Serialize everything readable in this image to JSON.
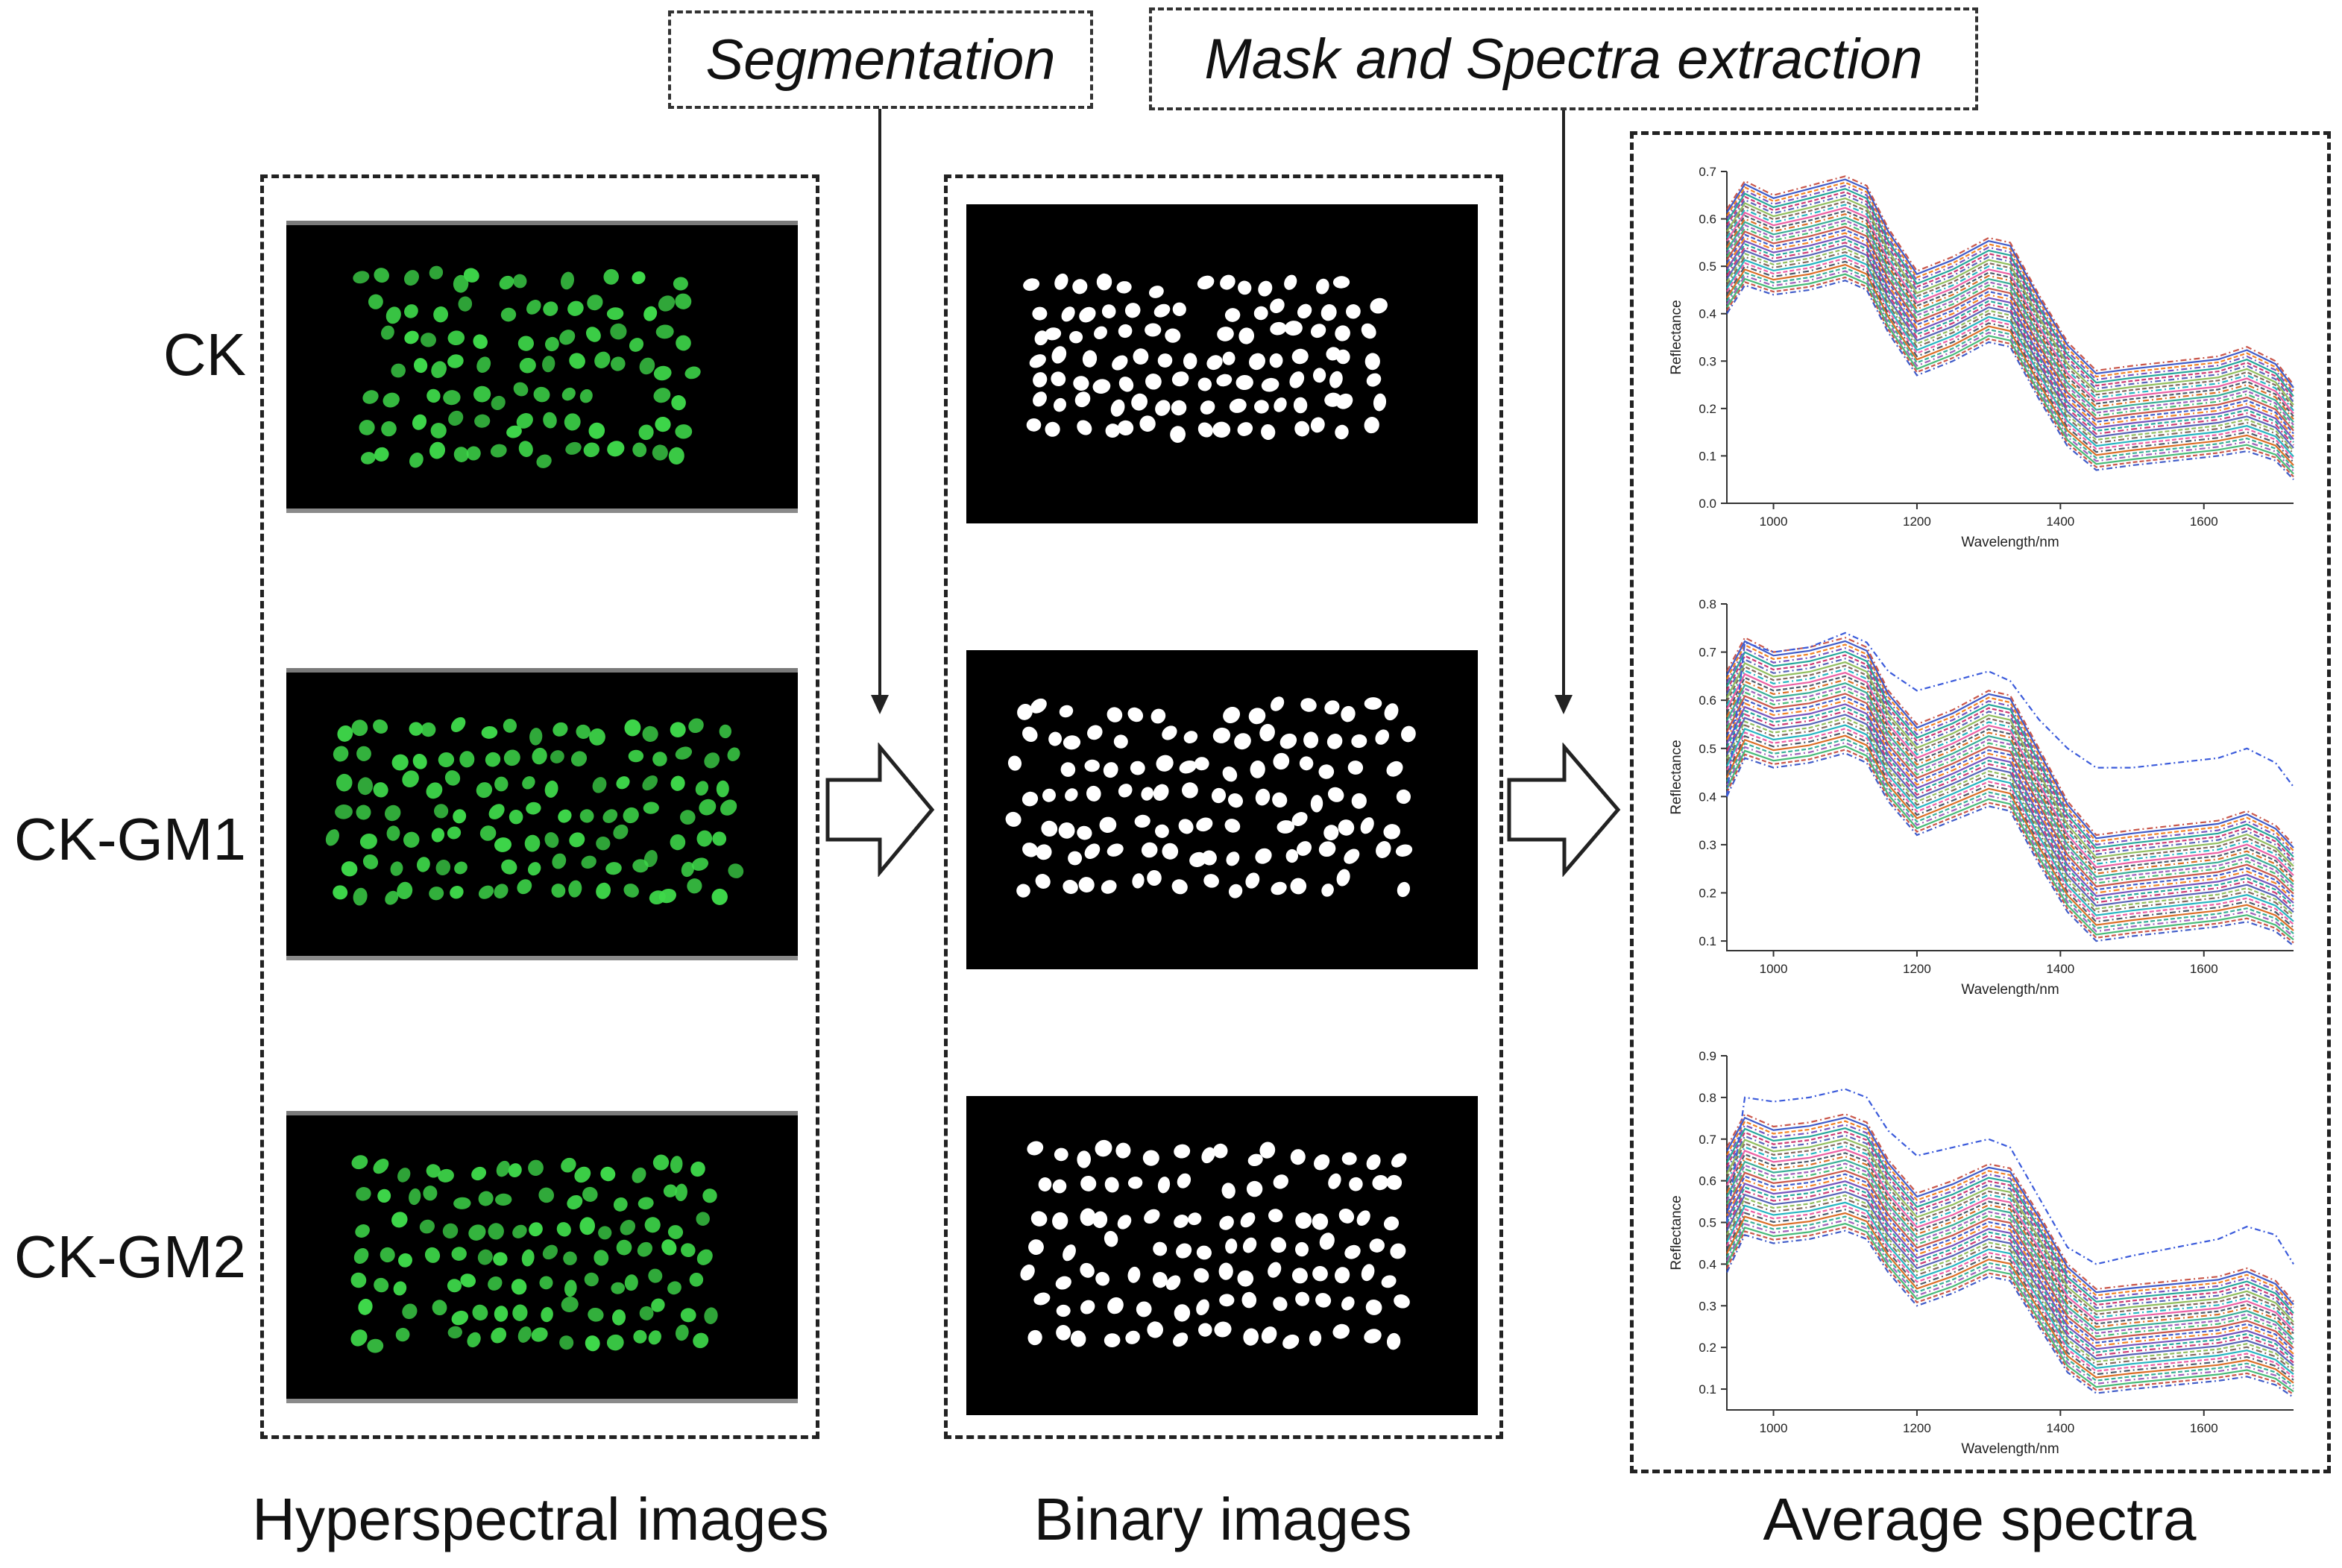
{
  "steps": {
    "segmentation": "Segmentation",
    "mask_extraction": "Mask and Spectra extraction"
  },
  "rows": [
    "CK",
    "CK-GM1",
    "CK-GM2"
  ],
  "columns": {
    "hyperspectral": "Hyperspectral images",
    "binary": "Binary images",
    "spectra": "Average spectra"
  },
  "colors": {
    "seed_green": "#3ed84a",
    "seed_white": "#ffffff",
    "background": "#000000"
  },
  "chart_data": [
    {
      "type": "line",
      "xlabel": "Wavelength/nm",
      "ylabel": "Reflectance",
      "xlim": [
        935,
        1725
      ],
      "ylim": [
        0.0,
        0.7
      ],
      "xticks": [
        1000,
        1200,
        1400,
        1600
      ],
      "yticks": [
        0.0,
        0.1,
        0.2,
        0.3,
        0.4,
        0.5,
        0.6,
        0.7
      ],
      "grid": false,
      "x": [
        935,
        960,
        1000,
        1050,
        1100,
        1130,
        1160,
        1200,
        1250,
        1300,
        1330,
        1370,
        1410,
        1450,
        1500,
        1560,
        1620,
        1660,
        1700,
        1725
      ],
      "series_low": [
        0.4,
        0.46,
        0.44,
        0.45,
        0.47,
        0.45,
        0.36,
        0.27,
        0.3,
        0.34,
        0.33,
        0.22,
        0.12,
        0.07,
        0.08,
        0.09,
        0.1,
        0.11,
        0.09,
        0.05
      ],
      "series_high": [
        0.62,
        0.68,
        0.65,
        0.67,
        0.69,
        0.67,
        0.58,
        0.49,
        0.52,
        0.56,
        0.55,
        0.44,
        0.34,
        0.28,
        0.29,
        0.3,
        0.31,
        0.33,
        0.3,
        0.25
      ]
    },
    {
      "type": "line",
      "xlabel": "Wavelength/nm",
      "ylabel": "Reflectance",
      "xlim": [
        935,
        1725
      ],
      "ylim": [
        0.08,
        0.8
      ],
      "xticks": [
        1000,
        1200,
        1400,
        1600
      ],
      "yticks": [
        0.1,
        0.2,
        0.3,
        0.4,
        0.5,
        0.6,
        0.7,
        0.8
      ],
      "grid": false,
      "x": [
        935,
        960,
        1000,
        1050,
        1100,
        1130,
        1160,
        1200,
        1250,
        1300,
        1330,
        1370,
        1410,
        1450,
        1500,
        1560,
        1620,
        1660,
        1700,
        1725
      ],
      "series_low": [
        0.4,
        0.48,
        0.46,
        0.47,
        0.49,
        0.47,
        0.39,
        0.32,
        0.35,
        0.38,
        0.37,
        0.26,
        0.16,
        0.1,
        0.11,
        0.12,
        0.13,
        0.14,
        0.12,
        0.09
      ],
      "series_high": [
        0.66,
        0.73,
        0.7,
        0.71,
        0.73,
        0.71,
        0.62,
        0.55,
        0.58,
        0.62,
        0.61,
        0.5,
        0.39,
        0.32,
        0.33,
        0.34,
        0.35,
        0.37,
        0.34,
        0.3
      ],
      "outlier": [
        0.4,
        0.72,
        0.7,
        0.71,
        0.74,
        0.72,
        0.66,
        0.62,
        0.64,
        0.66,
        0.64,
        0.56,
        0.5,
        0.46,
        0.46,
        0.47,
        0.48,
        0.5,
        0.47,
        0.42
      ]
    },
    {
      "type": "line",
      "xlabel": "Wavelength/nm",
      "ylabel": "Reflectance",
      "xlim": [
        935,
        1725
      ],
      "ylim": [
        0.05,
        0.9
      ],
      "xticks": [
        1000,
        1200,
        1400,
        1600
      ],
      "yticks": [
        0.1,
        0.2,
        0.3,
        0.4,
        0.5,
        0.6,
        0.7,
        0.8,
        0.9
      ],
      "grid": false,
      "x": [
        935,
        960,
        1000,
        1050,
        1100,
        1130,
        1160,
        1200,
        1250,
        1300,
        1330,
        1370,
        1410,
        1450,
        1500,
        1560,
        1620,
        1660,
        1700,
        1725
      ],
      "series_low": [
        0.38,
        0.47,
        0.45,
        0.46,
        0.48,
        0.46,
        0.38,
        0.3,
        0.33,
        0.37,
        0.36,
        0.25,
        0.14,
        0.09,
        0.1,
        0.11,
        0.12,
        0.13,
        0.11,
        0.08
      ],
      "series_high": [
        0.68,
        0.76,
        0.73,
        0.74,
        0.76,
        0.74,
        0.65,
        0.57,
        0.6,
        0.64,
        0.63,
        0.52,
        0.4,
        0.34,
        0.35,
        0.36,
        0.37,
        0.39,
        0.36,
        0.31
      ],
      "outlier": [
        0.5,
        0.8,
        0.79,
        0.8,
        0.82,
        0.8,
        0.72,
        0.66,
        0.68,
        0.7,
        0.68,
        0.56,
        0.44,
        0.4,
        0.42,
        0.44,
        0.46,
        0.49,
        0.47,
        0.4
      ]
    }
  ]
}
